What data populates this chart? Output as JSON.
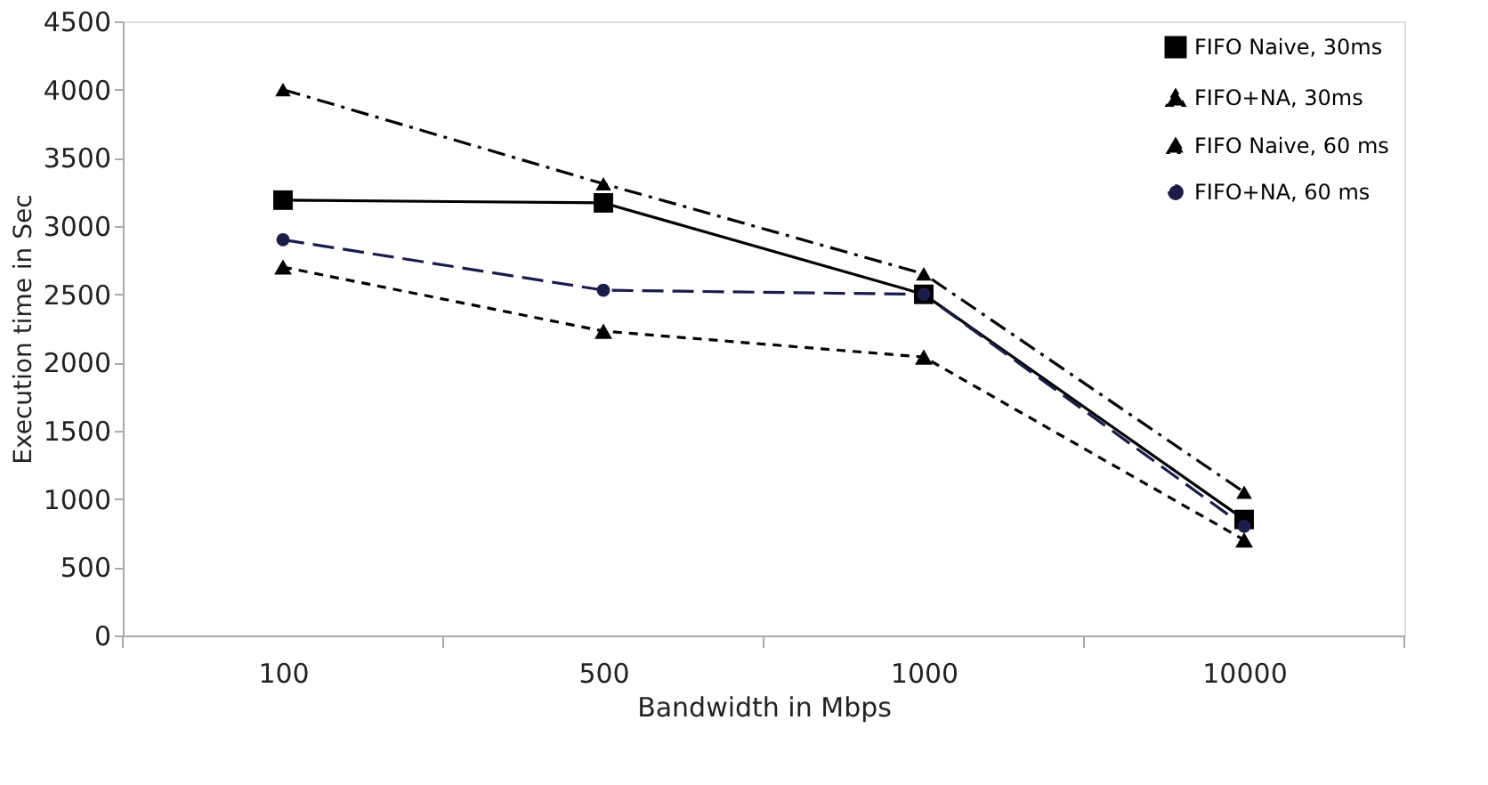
{
  "chart_data": {
    "type": "line",
    "xlabel": "Bandwidth in Mbps",
    "ylabel": "Execution time in Sec",
    "categories": [
      "100",
      "500",
      "1000",
      "10000"
    ],
    "series": [
      {
        "name": "FIFO Naive, 30ms",
        "color": "#000000",
        "marker": "square",
        "line_style": "solid",
        "values": [
          3190,
          3170,
          2500,
          850
        ]
      },
      {
        "name": "FIFO+NA, 30ms",
        "color": "#000000",
        "marker": "triangle",
        "line_style": "dashed",
        "values": [
          2700,
          2230,
          2040,
          700
        ]
      },
      {
        "name": "FIFO Naive, 60 ms",
        "color": "#000000",
        "marker": "triangle",
        "line_style": "dashdot",
        "values": [
          4000,
          3310,
          2650,
          1050
        ]
      },
      {
        "name": "FIFO+NA, 60 ms",
        "color": "#1c1c4a",
        "marker": "circle",
        "line_style": "longdash",
        "values": [
          2900,
          2530,
          2500,
          800
        ]
      }
    ],
    "ylim": [
      0,
      4500
    ],
    "yticks": [
      0,
      500,
      1000,
      1500,
      2000,
      2500,
      3000,
      3500,
      4000,
      4500
    ],
    "grid": false,
    "legend": "top right"
  }
}
